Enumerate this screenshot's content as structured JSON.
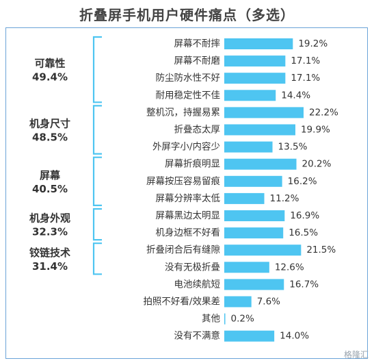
{
  "chart_data": {
    "type": "bar",
    "orientation": "horizontal",
    "title": "折叠屏手机用户硬件痛点（多选）",
    "categories": [
      "屏幕不耐摔",
      "屏幕不耐磨",
      "防尘防水性不好",
      "耐用稳定性不佳",
      "整机沉，持握易累",
      "折叠态太厚",
      "外屏字小/内容少",
      "屏幕折痕明显",
      "屏幕按压容易留痕",
      "屏幕分辨率太低",
      "屏幕黑边太明显",
      "机身边框不好看",
      "折叠闭合后有缝隙",
      "没有无极折叠",
      "电池续航短",
      "拍照不好看/效果差",
      "其他",
      "没有不满意"
    ],
    "values": [
      19.2,
      17.1,
      17.1,
      14.4,
      22.2,
      19.9,
      13.5,
      20.2,
      16.2,
      11.2,
      16.9,
      16.5,
      21.5,
      12.6,
      16.7,
      7.6,
      0.2,
      14.0
    ],
    "value_labels": [
      "19.2%",
      "17.1%",
      "17.1%",
      "14.4%",
      "22.2%",
      "19.9%",
      "13.5%",
      "20.2%",
      "16.2%",
      "11.2%",
      "16.9%",
      "16.5%",
      "21.5%",
      "12.6%",
      "16.7%",
      "7.6%",
      "0.2%",
      "14.0%"
    ],
    "groups": [
      {
        "name": "可靠性",
        "total": "49.4%",
        "start": 0,
        "end": 3
      },
      {
        "name": "机身尺寸",
        "total": "48.5%",
        "start": 4,
        "end": 6
      },
      {
        "name": "屏幕",
        "total": "40.5%",
        "start": 7,
        "end": 9
      },
      {
        "name": "机身外观",
        "total": "32.3%",
        "start": 10,
        "end": 11
      },
      {
        "name": "铰链技术",
        "total": "31.4%",
        "start": 12,
        "end": 13
      }
    ],
    "xlim": [
      0,
      22.2
    ],
    "grid": false,
    "colors": {
      "bar": "#4ec5f1",
      "bracket": "#4ec5f1",
      "text": "#333333",
      "group_text": "#333333"
    }
  },
  "watermark": "格隆汇"
}
